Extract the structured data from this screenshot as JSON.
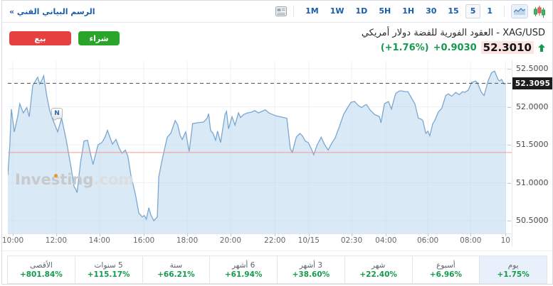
{
  "colors": {
    "blue": "#1a5ca8",
    "green": "#149a4d",
    "buy": "#2aa52a",
    "sell": "#e64141",
    "flash": "#fbe4e1",
    "badgebg": "#1c1c1c",
    "selcell": "#e8f1fb",
    "line": "#7aa7d0",
    "fill": "rgba(182,211,237,0.5)",
    "prevclose": "#f29a91",
    "dashline": "#4a4a4a",
    "grid": "#eef1f5"
  },
  "header": {
    "link_label": "الرسم البياني الفني »",
    "intervals": [
      "1M",
      "1W",
      "1D",
      "5H",
      "1H",
      "30",
      "15",
      "5",
      "1"
    ],
    "selected_interval": "5"
  },
  "instrument": {
    "title": "XAG/USD - العقود الفورية للفضة دولار أمريكي",
    "price": "52.3010",
    "change": "+0.9030",
    "change_pct": "(+1.76%)",
    "buy_label": "شراء",
    "sell_label": "بيع"
  },
  "watermark": {
    "part1": "Investing",
    "part2": ".com"
  },
  "news_marker": {
    "label": "N"
  },
  "chart_data": {
    "type": "area",
    "y_domain": [
      50.332,
      52.603
    ],
    "grid": true,
    "y_ticks": [
      {
        "label": "52.5000",
        "value": 52.5
      },
      {
        "label": "52.0000",
        "value": 52.0
      },
      {
        "label": "51.5000",
        "value": 51.5
      },
      {
        "label": "51.0000",
        "value": 51.0
      },
      {
        "label": "50.5000",
        "value": 50.5
      }
    ],
    "x_ticks": [
      {
        "label": "10:00",
        "f": 0.01
      },
      {
        "label": "12:00",
        "f": 0.097
      },
      {
        "label": "14:00",
        "f": 0.184
      },
      {
        "label": "16:00",
        "f": 0.273
      },
      {
        "label": "18:00",
        "f": 0.36
      },
      {
        "label": "20:00",
        "f": 0.447
      },
      {
        "label": "22:00",
        "f": 0.536
      },
      {
        "label": "10/15",
        "f": 0.604
      },
      {
        "label": "02:30",
        "f": 0.69
      },
      {
        "label": "04:00",
        "f": 0.759
      },
      {
        "label": "06:00",
        "f": 0.843
      },
      {
        "label": "08:00",
        "f": 0.929
      },
      {
        "label": "10",
        "f": 0.999
      }
    ],
    "current_price": {
      "label": "52.3095",
      "value": 52.3095
    },
    "prev_close": 51.398,
    "points": [
      [
        0.0,
        51.1
      ],
      [
        0.004,
        51.5
      ],
      [
        0.007,
        51.97
      ],
      [
        0.013,
        51.67
      ],
      [
        0.02,
        51.88
      ],
      [
        0.024,
        52.04
      ],
      [
        0.031,
        51.92
      ],
      [
        0.038,
        51.99
      ],
      [
        0.043,
        51.87
      ],
      [
        0.05,
        52.28
      ],
      [
        0.057,
        52.36
      ],
      [
        0.06,
        52.39
      ],
      [
        0.064,
        52.3
      ],
      [
        0.069,
        52.36
      ],
      [
        0.072,
        52.41
      ],
      [
        0.078,
        52.15
      ],
      [
        0.084,
        51.95
      ],
      [
        0.091,
        51.82
      ],
      [
        0.1,
        51.67
      ],
      [
        0.108,
        51.85
      ],
      [
        0.117,
        51.57
      ],
      [
        0.127,
        51.2
      ],
      [
        0.133,
        50.95
      ],
      [
        0.136,
        50.92
      ],
      [
        0.139,
        50.87
      ],
      [
        0.146,
        51.27
      ],
      [
        0.153,
        51.55
      ],
      [
        0.16,
        51.56
      ],
      [
        0.166,
        51.38
      ],
      [
        0.171,
        51.24
      ],
      [
        0.181,
        51.5
      ],
      [
        0.189,
        51.53
      ],
      [
        0.195,
        51.6
      ],
      [
        0.2,
        51.69
      ],
      [
        0.206,
        51.58
      ],
      [
        0.21,
        51.51
      ],
      [
        0.217,
        51.57
      ],
      [
        0.224,
        51.45
      ],
      [
        0.229,
        51.39
      ],
      [
        0.236,
        51.43
      ],
      [
        0.241,
        51.35
      ],
      [
        0.247,
        51.1
      ],
      [
        0.256,
        50.85
      ],
      [
        0.263,
        50.6
      ],
      [
        0.27,
        50.55
      ],
      [
        0.274,
        50.57
      ],
      [
        0.278,
        50.52
      ],
      [
        0.283,
        50.67
      ],
      [
        0.287,
        50.58
      ],
      [
        0.293,
        50.5
      ],
      [
        0.3,
        50.55
      ],
      [
        0.303,
        51.08
      ],
      [
        0.31,
        51.31
      ],
      [
        0.32,
        51.6
      ],
      [
        0.327,
        51.65
      ],
      [
        0.336,
        51.82
      ],
      [
        0.341,
        51.76
      ],
      [
        0.346,
        51.62
      ],
      [
        0.35,
        51.57
      ],
      [
        0.357,
        51.67
      ],
      [
        0.364,
        51.41
      ],
      [
        0.371,
        51.78
      ],
      [
        0.381,
        51.79
      ],
      [
        0.393,
        51.8
      ],
      [
        0.4,
        51.85
      ],
      [
        0.403,
        51.91
      ],
      [
        0.407,
        51.69
      ],
      [
        0.412,
        51.65
      ],
      [
        0.417,
        51.56
      ],
      [
        0.421,
        51.68
      ],
      [
        0.427,
        51.53
      ],
      [
        0.436,
        51.9
      ],
      [
        0.439,
        51.94
      ],
      [
        0.443,
        51.71
      ],
      [
        0.45,
        51.87
      ],
      [
        0.456,
        51.76
      ],
      [
        0.463,
        51.92
      ],
      [
        0.467,
        51.86
      ],
      [
        0.474,
        51.9
      ],
      [
        0.481,
        51.92
      ],
      [
        0.489,
        51.93
      ],
      [
        0.496,
        51.95
      ],
      [
        0.503,
        51.92
      ],
      [
        0.51,
        51.94
      ],
      [
        0.517,
        51.96
      ],
      [
        0.524,
        51.92
      ],
      [
        0.531,
        51.9
      ],
      [
        0.539,
        51.88
      ],
      [
        0.546,
        51.87
      ],
      [
        0.553,
        51.86
      ],
      [
        0.56,
        51.85
      ],
      [
        0.567,
        51.45
      ],
      [
        0.571,
        51.4
      ],
      [
        0.579,
        51.6
      ],
      [
        0.586,
        51.65
      ],
      [
        0.591,
        51.62
      ],
      [
        0.597,
        51.55
      ],
      [
        0.603,
        51.53
      ],
      [
        0.609,
        51.45
      ],
      [
        0.614,
        51.37
      ],
      [
        0.621,
        51.5
      ],
      [
        0.629,
        51.6
      ],
      [
        0.636,
        51.5
      ],
      [
        0.643,
        51.43
      ],
      [
        0.65,
        51.52
      ],
      [
        0.657,
        51.59
      ],
      [
        0.666,
        51.75
      ],
      [
        0.674,
        51.9
      ],
      [
        0.683,
        52.0
      ],
      [
        0.689,
        52.06
      ],
      [
        0.696,
        52.07
      ],
      [
        0.703,
        52.02
      ],
      [
        0.71,
        51.99
      ],
      [
        0.716,
        52.02
      ],
      [
        0.72,
        52.03
      ],
      [
        0.727,
        51.96
      ],
      [
        0.736,
        51.9
      ],
      [
        0.743,
        51.88
      ],
      [
        0.746,
        51.87
      ],
      [
        0.749,
        51.79
      ],
      [
        0.756,
        52.04
      ],
      [
        0.764,
        52.07
      ],
      [
        0.77,
        51.97
      ],
      [
        0.776,
        52.12
      ],
      [
        0.779,
        52.18
      ],
      [
        0.786,
        52.21
      ],
      [
        0.791,
        52.21
      ],
      [
        0.797,
        52.2
      ],
      [
        0.803,
        52.2
      ],
      [
        0.81,
        52.12
      ],
      [
        0.817,
        52.04
      ],
      [
        0.824,
        51.85
      ],
      [
        0.829,
        51.84
      ],
      [
        0.833,
        51.82
      ],
      [
        0.839,
        51.65
      ],
      [
        0.843,
        51.68
      ],
      [
        0.847,
        51.62
      ],
      [
        0.853,
        51.78
      ],
      [
        0.857,
        51.82
      ],
      [
        0.864,
        51.93
      ],
      [
        0.871,
        51.98
      ],
      [
        0.879,
        52.15
      ],
      [
        0.884,
        52.17
      ],
      [
        0.891,
        52.14
      ],
      [
        0.899,
        52.19
      ],
      [
        0.906,
        52.16
      ],
      [
        0.913,
        52.2
      ],
      [
        0.917,
        52.19
      ],
      [
        0.924,
        52.22
      ],
      [
        0.931,
        52.32
      ],
      [
        0.939,
        52.34
      ],
      [
        0.943,
        52.31
      ],
      [
        0.95,
        52.2
      ],
      [
        0.953,
        52.17
      ],
      [
        0.956,
        52.15
      ],
      [
        0.964,
        52.34
      ],
      [
        0.971,
        52.45
      ],
      [
        0.977,
        52.47
      ],
      [
        0.984,
        52.36
      ],
      [
        0.987,
        52.34
      ],
      [
        0.991,
        52.36
      ],
      [
        0.996,
        52.3
      ],
      [
        1.0,
        52.31
      ]
    ]
  },
  "performance": [
    {
      "label": "يوم",
      "value": "+1.75%",
      "selected": true
    },
    {
      "label": "أسبوع",
      "value": "+6.96%",
      "selected": false
    },
    {
      "label": "شهر",
      "value": "+22.40%",
      "selected": false
    },
    {
      "label": "3 أشهر",
      "value": "+38.60%",
      "selected": false
    },
    {
      "label": "6 أشهر",
      "value": "+61.94%",
      "selected": false
    },
    {
      "label": "سنة",
      "value": "+66.21%",
      "selected": false
    },
    {
      "label": "5 سنوات",
      "value": "+115.17%",
      "selected": false
    },
    {
      "label": "الأقصى",
      "value": "+801.84%",
      "selected": false
    }
  ]
}
